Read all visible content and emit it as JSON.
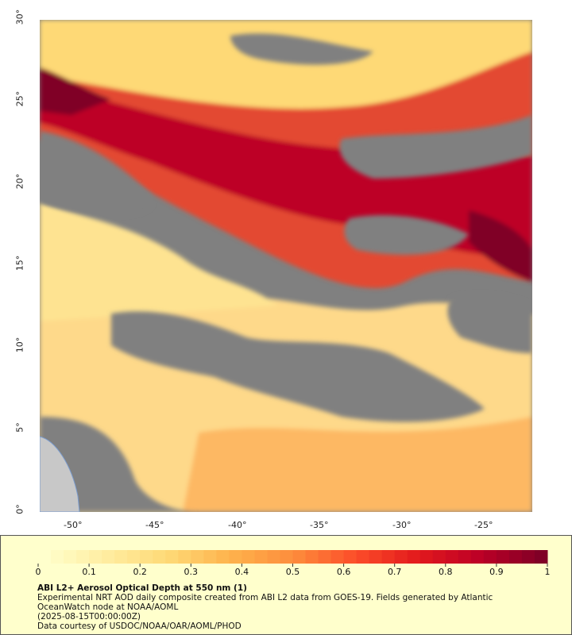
{
  "map": {
    "lat_ticks": [
      "0°",
      "5°",
      "10°",
      "15°",
      "20°",
      "25°",
      "30°"
    ],
    "lon_ticks": [
      "-50°",
      "-45°",
      "-40°",
      "-35°",
      "-30°",
      "-25°"
    ],
    "lon_range": [
      -52.2,
      -22.5
    ],
    "lat_range": [
      0,
      30
    ],
    "colors": {
      "no_data": "#808080",
      "land": "#c8c8c8"
    }
  },
  "legend": {
    "ticks": [
      "0",
      "0.1",
      "0.2",
      "0.3",
      "0.4",
      "0.5",
      "0.6",
      "0.7",
      "0.8",
      "0.9",
      "1"
    ],
    "range": [
      0,
      1
    ],
    "colors": [
      "#ffffcc",
      "#ffeda0",
      "#fed976",
      "#feb24c",
      "#fd8d3c",
      "#fc4e2a",
      "#e31a1c",
      "#bd0026",
      "#800026"
    ],
    "title": "ABI L2+ Aerosol Optical Depth at 550 nm (1)",
    "line1": "Experimental NRT AOD daily composite created from ABI L2 data from GOES-19. Fields generated by Atlantic",
    "line2": "OceanWatch node at NOAA/AOML",
    "line3": "(2025-08-15T00:00:00Z)",
    "line4": "Data courtesy of USDOC/NOAA/OAR/AOML/PHOD"
  }
}
